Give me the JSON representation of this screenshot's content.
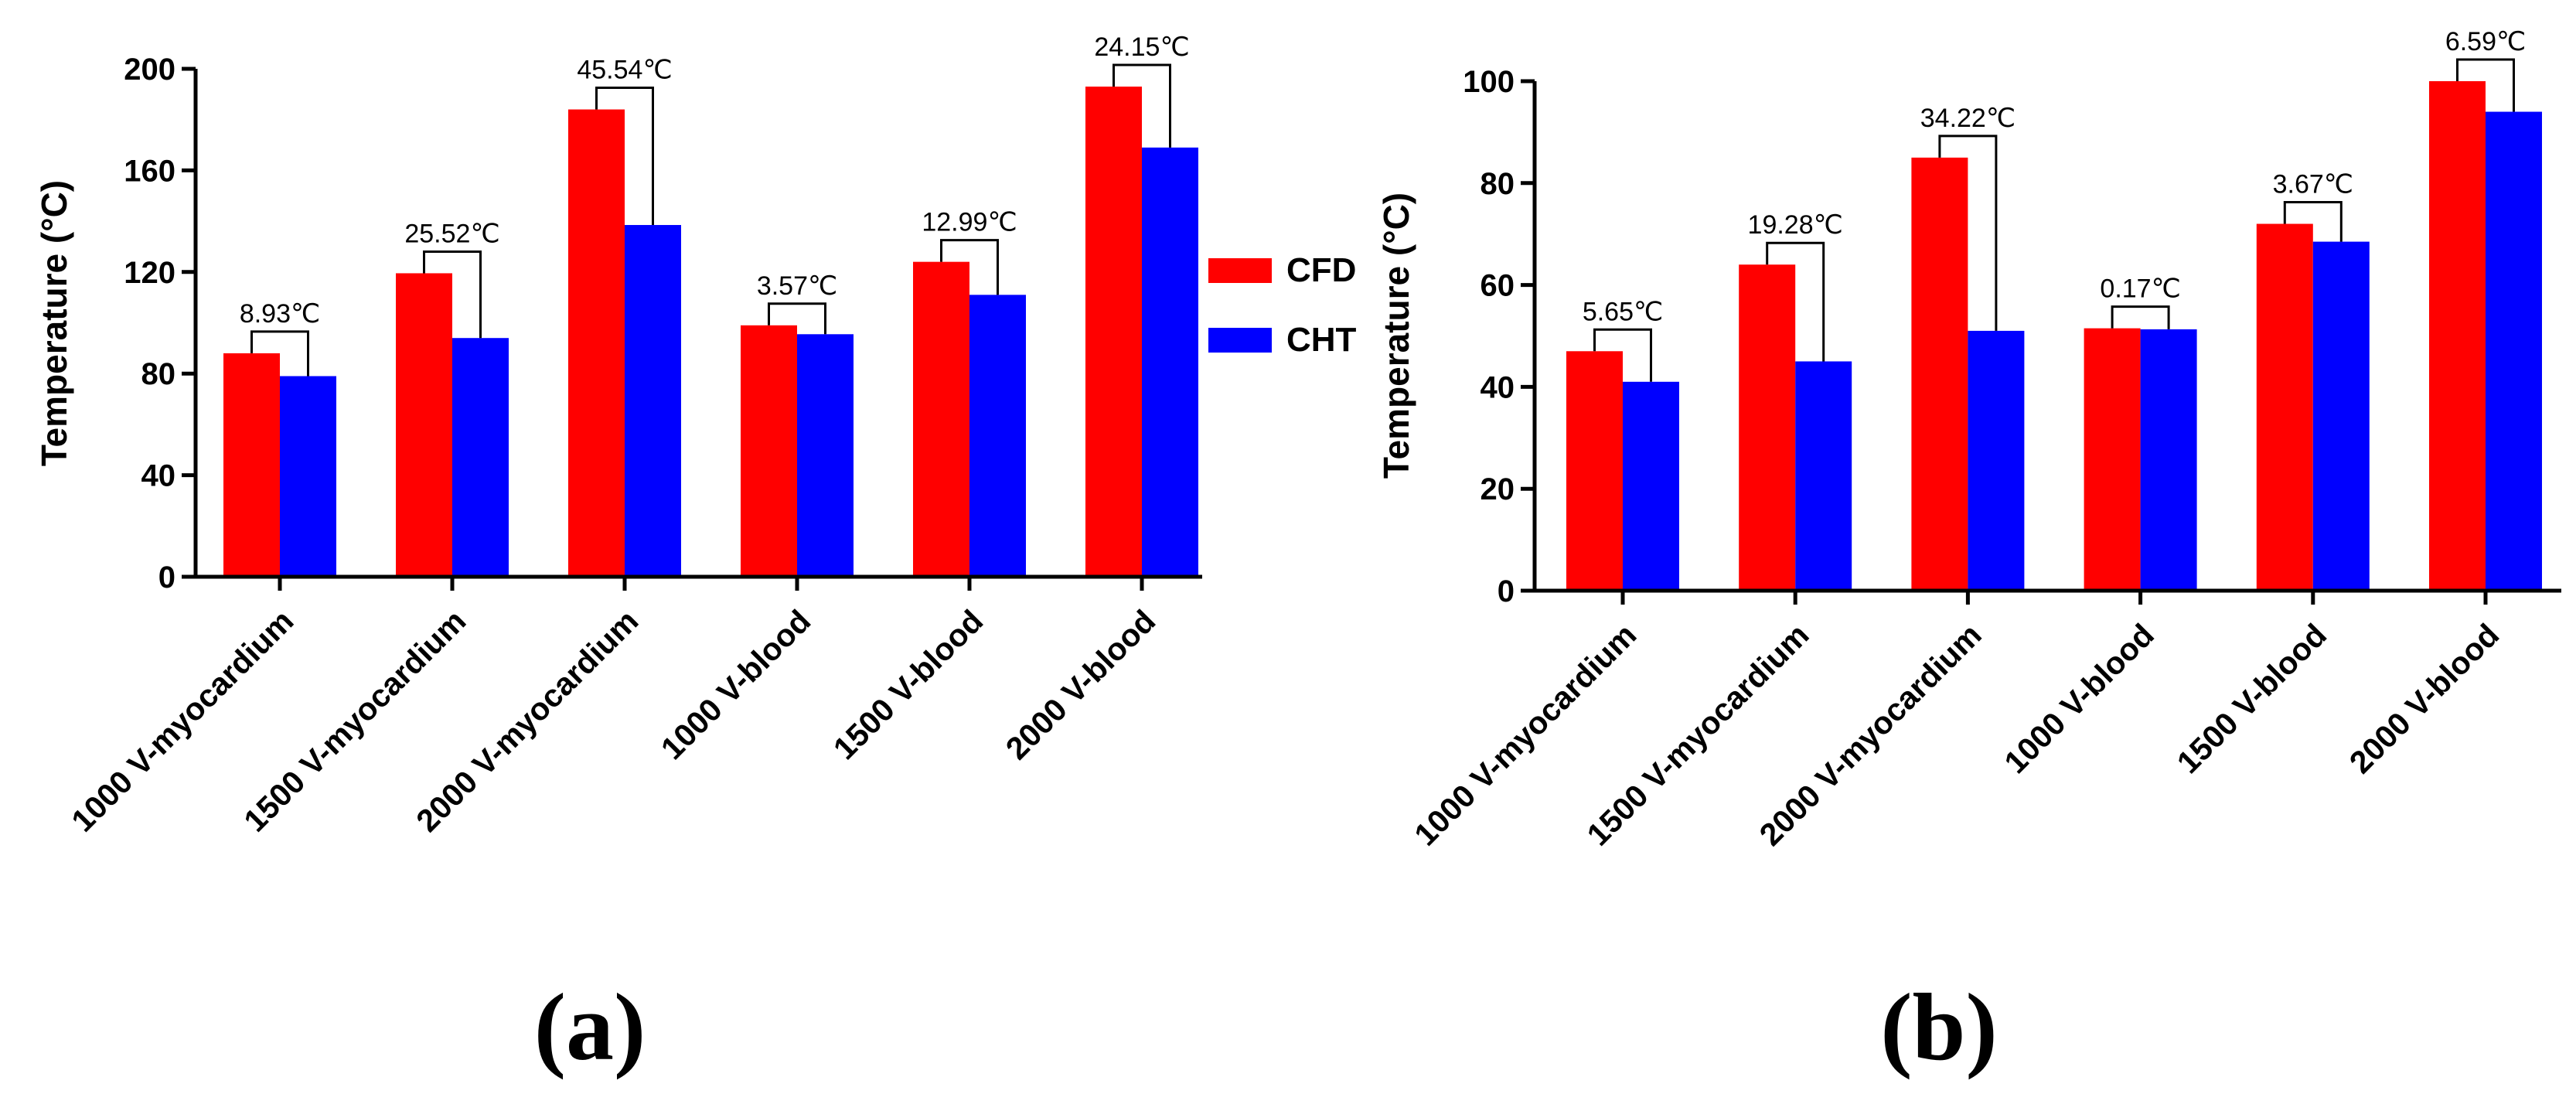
{
  "colors": {
    "cfd": "#ff0000",
    "cht": "#0000ff",
    "axis": "#000000",
    "bracket": "#000000"
  },
  "legend": {
    "items": [
      {
        "label": "CFD",
        "color": "#ff0000"
      },
      {
        "label": "CHT",
        "color": "#0000ff"
      }
    ]
  },
  "chart_data": [
    {
      "type": "bar",
      "panel_label": "(a)",
      "ylabel": "Temperature (°C)",
      "xlabel": "",
      "ylim": [
        0,
        200
      ],
      "yticks": [
        0,
        40,
        80,
        120,
        160,
        200
      ],
      "categories": [
        "1000 V-myocardium",
        "1500 V-myocardium",
        "2000 V-myocardium",
        "1000 V-blood",
        "1500 V-blood",
        "2000 V-blood"
      ],
      "series": [
        {
          "name": "CFD",
          "values": [
            88,
            119.5,
            184,
            99,
            124,
            193
          ]
        },
        {
          "name": "CHT",
          "values": [
            79,
            94,
            138.5,
            95.5,
            111,
            169
          ]
        }
      ],
      "annotations": [
        "8.93℃",
        "25.52℃",
        "45.54℃",
        "3.57℃",
        "12.99℃",
        "24.15℃"
      ]
    },
    {
      "type": "bar",
      "panel_label": "(b)",
      "ylabel": "Temperature (°C)",
      "xlabel": "",
      "ylim": [
        0,
        100
      ],
      "yticks": [
        0,
        20,
        40,
        60,
        80,
        100
      ],
      "categories": [
        "1000 V-myocardium",
        "1500 V-myocardium",
        "2000 V-myocardium",
        "1000 V-blood",
        "1500 V-blood",
        "2000 V-blood"
      ],
      "series": [
        {
          "name": "CFD",
          "values": [
            47,
            64,
            85,
            51.5,
            72,
            100
          ]
        },
        {
          "name": "CHT",
          "values": [
            41,
            45,
            51,
            51.3,
            68.5,
            94
          ]
        }
      ],
      "annotations": [
        "5.65℃",
        "19.28℃",
        "34.22℃",
        "0.17℃",
        "3.67℃",
        "6.59℃"
      ]
    }
  ]
}
